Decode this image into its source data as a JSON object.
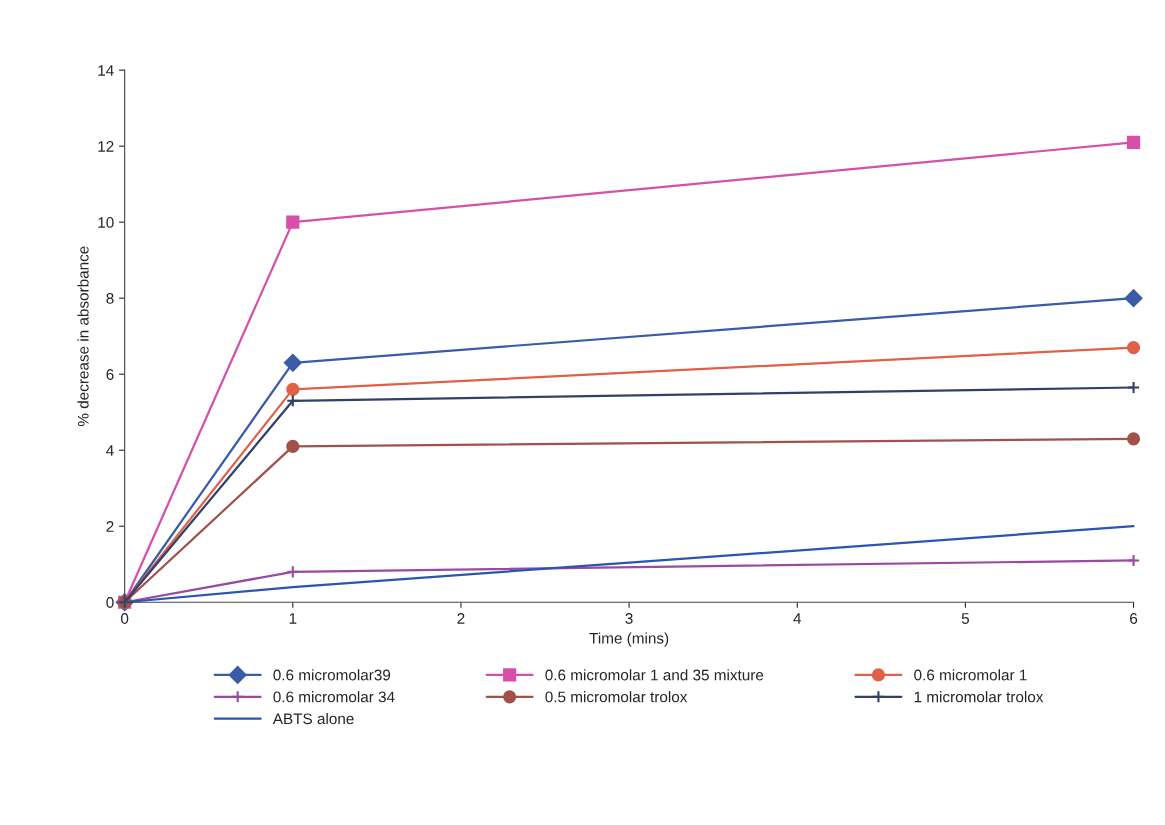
{
  "chart_data": {
    "type": "line",
    "xlabel": "Time (mins)",
    "ylabel": "% decrease in absorbance",
    "x": [
      0,
      1,
      6
    ],
    "xlim": [
      0,
      6
    ],
    "xticks": [
      0,
      1,
      2,
      3,
      4,
      5,
      6
    ],
    "ylim": [
      0,
      14
    ],
    "yticks": [
      0,
      2,
      4,
      6,
      8,
      10,
      12,
      14
    ],
    "grid": false,
    "legend": "bottom",
    "series": [
      {
        "name": "0.6 micromolar39",
        "color": "#3a5ba8",
        "marker": "diamond",
        "values": [
          0,
          6.3,
          8.0
        ]
      },
      {
        "name": "0.6 micromolar 1 and 35 mixture",
        "color": "#d64fa8",
        "marker": "square",
        "values": [
          0,
          10.0,
          12.1
        ]
      },
      {
        "name": "0.6 micromolar 1",
        "color": "#e06048",
        "marker": "circle",
        "values": [
          0,
          5.6,
          6.7
        ]
      },
      {
        "name": "0.6 micromolar 34",
        "color": "#9a4aa0",
        "marker": "cross",
        "values": [
          0,
          0.8,
          1.1
        ]
      },
      {
        "name": "0.5 micromolar trolox",
        "color": "#a0524a",
        "marker": "circle",
        "values": [
          0,
          4.1,
          4.3
        ]
      },
      {
        "name": "1 micromolar trolox",
        "color": "#30406a",
        "marker": "cross",
        "values": [
          0,
          5.3,
          5.65
        ]
      },
      {
        "name": "ABTS alone",
        "color": "#2a55b0",
        "marker": "none",
        "values": [
          0,
          0.4,
          2.0
        ]
      }
    ]
  }
}
